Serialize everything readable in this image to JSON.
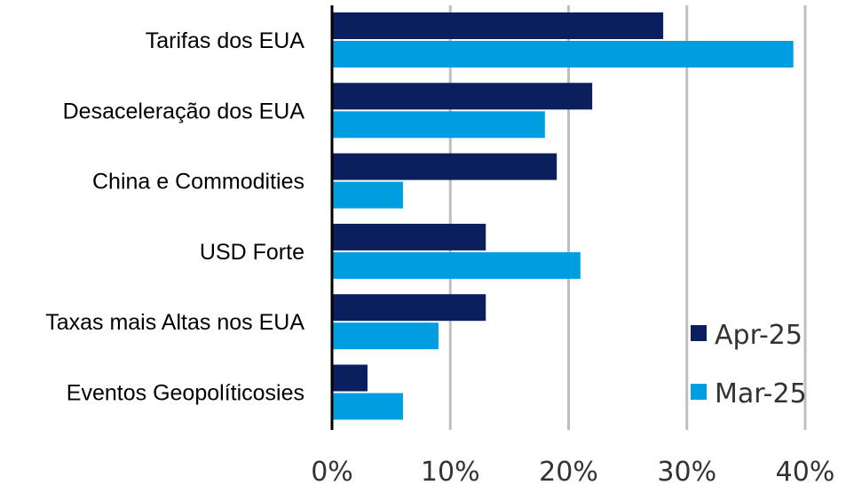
{
  "chart_data": {
    "type": "bar",
    "orientation": "horizontal",
    "categories": [
      "Tarifas dos EUA",
      "Desaceleração dos EUA",
      "China e Commodities",
      "USD Forte",
      "Taxas mais Altas nos EUA",
      "Eventos Geopolíticosies"
    ],
    "series": [
      {
        "name": "Apr-25",
        "color": "#0b1f5f",
        "values": [
          28,
          22,
          19,
          13,
          13,
          3
        ]
      },
      {
        "name": "Mar-25",
        "color": "#009ee0",
        "values": [
          39,
          18,
          6,
          21,
          9,
          6
        ]
      }
    ],
    "xlim": [
      0,
      40
    ],
    "xticks": [
      0,
      10,
      20,
      30,
      40
    ],
    "xtick_labels": [
      "0%",
      "10%",
      "20%",
      "30%",
      "40%"
    ],
    "grid": "vertical",
    "legend_position": "bottom-right"
  }
}
